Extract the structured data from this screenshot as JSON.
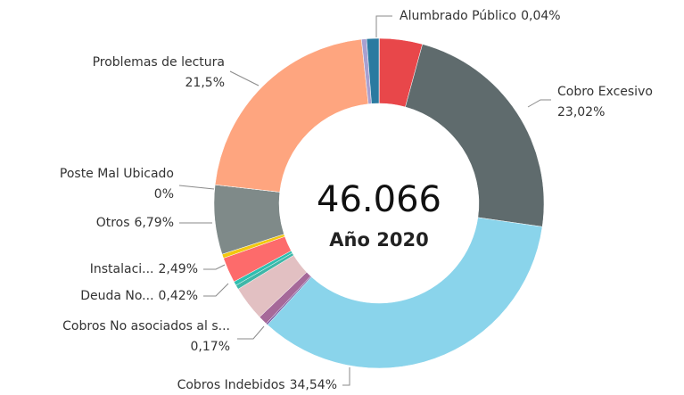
{
  "chart_data": {
    "type": "donut",
    "center_text": "46.066",
    "center_subtext": "Año 2020",
    "categories": [
      "Alumbrado Público",
      null,
      "Cobro Excesivo",
      "Cobros Indebidos",
      "Cobros No asociados al s...",
      null,
      null,
      "Deuda No...",
      null,
      "Instalaci...",
      null,
      "Otros",
      "Poste Mal Ubicado",
      "Problemas de lectura",
      null,
      null
    ],
    "values": [
      0.04,
      4.2,
      23.02,
      34.54,
      0.17,
      0.9,
      3.4,
      0.42,
      0.4,
      2.49,
      0.4,
      6.79,
      0,
      21.5,
      0.5,
      1.2
    ],
    "value_labels": [
      "0,04%",
      null,
      "23,02%",
      "34,54%",
      "0,17%",
      null,
      null,
      "0,42%",
      null,
      "2,49%",
      null,
      "6,79%",
      "0%",
      "21,5%",
      null,
      null
    ],
    "colors": [
      "#1f2a30",
      "#e8474a",
      "#5f6b6d",
      "#8ad4eb",
      "#7b5ea7",
      "#a66999",
      "#e2c0c2",
      "#3fb7a8",
      "#2fbfb0",
      "#fd6b6b",
      "#f2c80f",
      "#7f8a89",
      "#b0b0b0",
      "#fea57f",
      "#a8a0d0",
      "#2a7aa0"
    ]
  }
}
